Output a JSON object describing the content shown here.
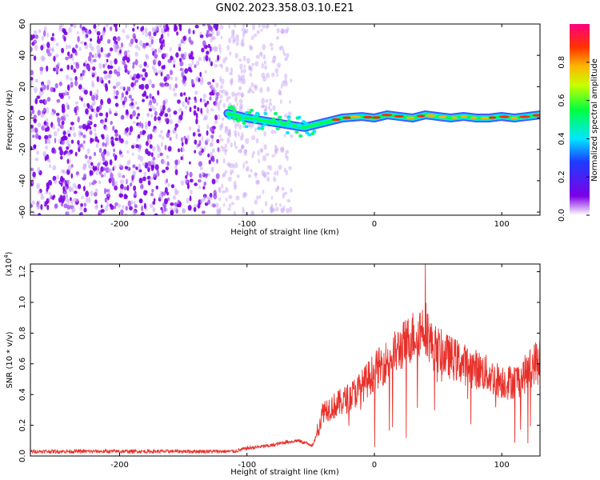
{
  "title": "GN02.2023.358.03.10.E21",
  "chart_data": [
    {
      "type": "heatmap",
      "xlabel": "Height of straight line (km)",
      "ylabel": "Frequency (Hz)",
      "xlim": [
        -270,
        130
      ],
      "ylim": [
        -62,
        60
      ],
      "x_ticks": [
        "-200",
        "-100",
        "0",
        "100"
      ],
      "y_ticks": [
        "-60",
        "-40",
        "-20",
        "0",
        "20",
        "40",
        "60"
      ],
      "colorbar": {
        "label": "Normalized spectral amplitude",
        "ticks": [
          "0.0",
          "0.2",
          "0.4",
          "0.6",
          "0.8"
        ],
        "range": [
          0,
          1
        ]
      },
      "noise_region_x": [
        -270,
        -65
      ],
      "signal_band": [
        {
          "x": -115,
          "y": 3
        },
        {
          "x": -100,
          "y": 0
        },
        {
          "x": -85,
          "y": -2
        },
        {
          "x": -70,
          "y": -4
        },
        {
          "x": -55,
          "y": -6
        },
        {
          "x": -40,
          "y": -3
        },
        {
          "x": -25,
          "y": 0
        },
        {
          "x": -10,
          "y": 1
        },
        {
          "x": 0,
          "y": 0
        },
        {
          "x": 10,
          "y": 2
        },
        {
          "x": 20,
          "y": 1
        },
        {
          "x": 30,
          "y": 0
        },
        {
          "x": 40,
          "y": 2
        },
        {
          "x": 50,
          "y": 1
        },
        {
          "x": 60,
          "y": 0
        },
        {
          "x": 70,
          "y": 1
        },
        {
          "x": 80,
          "y": 0
        },
        {
          "x": 90,
          "y": 0
        },
        {
          "x": 100,
          "y": 1
        },
        {
          "x": 110,
          "y": 0
        },
        {
          "x": 120,
          "y": 1
        },
        {
          "x": 130,
          "y": 2
        }
      ]
    },
    {
      "type": "line",
      "xlabel": "Height of straight line (km)",
      "ylabel": "SNR (10 * v/v)",
      "y_multiplier_label": "(x10",
      "y_multiplier_exp": "4",
      "xlim": [
        -270,
        130
      ],
      "ylim": [
        0,
        1.25
      ],
      "x_ticks": [
        "-200",
        "-100",
        "0",
        "100"
      ],
      "y_ticks": [
        "0.0",
        "0.2",
        "0.4",
        "0.6",
        "0.8",
        "1.0",
        "1.2"
      ],
      "color": "#e8302a",
      "envelope": [
        {
          "x": -270,
          "y": 0.03
        },
        {
          "x": -110,
          "y": 0.03
        },
        {
          "x": -100,
          "y": 0.05
        },
        {
          "x": -80,
          "y": 0.07
        },
        {
          "x": -70,
          "y": 0.09
        },
        {
          "x": -60,
          "y": 0.1
        },
        {
          "x": -48,
          "y": 0.07
        },
        {
          "x": -40,
          "y": 0.3
        },
        {
          "x": -30,
          "y": 0.33
        },
        {
          "x": -20,
          "y": 0.38
        },
        {
          "x": -10,
          "y": 0.45
        },
        {
          "x": 0,
          "y": 0.55
        },
        {
          "x": 10,
          "y": 0.62
        },
        {
          "x": 20,
          "y": 0.7
        },
        {
          "x": 30,
          "y": 0.78
        },
        {
          "x": 40,
          "y": 0.85
        },
        {
          "x": 45,
          "y": 0.72
        },
        {
          "x": 55,
          "y": 0.66
        },
        {
          "x": 65,
          "y": 0.62
        },
        {
          "x": 75,
          "y": 0.58
        },
        {
          "x": 85,
          "y": 0.55
        },
        {
          "x": 95,
          "y": 0.5
        },
        {
          "x": 105,
          "y": 0.48
        },
        {
          "x": 115,
          "y": 0.5
        },
        {
          "x": 125,
          "y": 0.6
        },
        {
          "x": 130,
          "y": 0.65
        }
      ],
      "peak": {
        "x": 40,
        "y": 1.25
      }
    }
  ]
}
